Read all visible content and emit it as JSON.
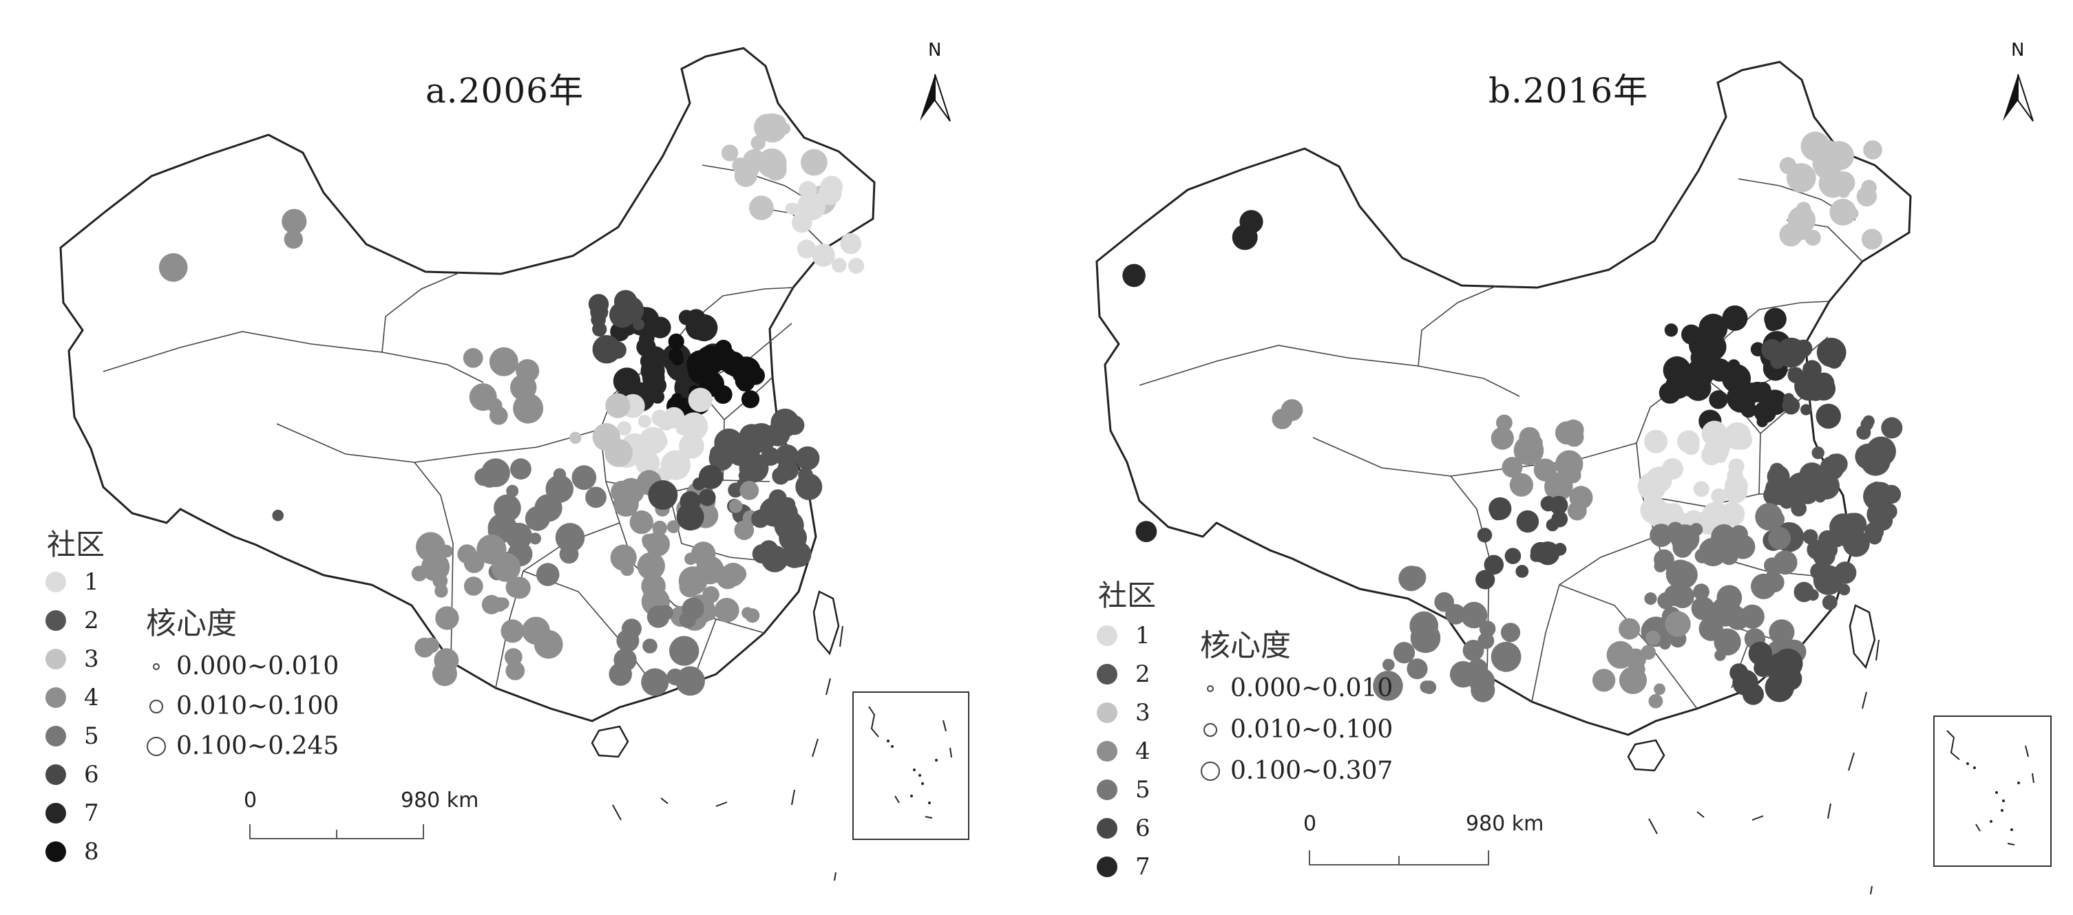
{
  "figure": {
    "community_colors": {
      "1": "#dcdcdc",
      "2": "#555555",
      "3": "#c4c4c4",
      "4": "#8e8e8e",
      "5": "#777777",
      "6": "#484848",
      "7": "#262626",
      "8": "#101010"
    },
    "panels": [
      {
        "title": "a.2006年",
        "north_label": "N",
        "legend": {
          "title": "社区",
          "items": [
            "1",
            "2",
            "3",
            "4",
            "5",
            "6",
            "7",
            "8"
          ]
        },
        "size_legend": {
          "title": "核心度",
          "ranges": [
            "0.000~0.010",
            "0.010~0.100",
            "0.100~0.245"
          ]
        },
        "scale": {
          "start": "0",
          "end": "980 km"
        }
      },
      {
        "title": "b.2016年",
        "north_label": "N",
        "legend": {
          "title": "社区",
          "items": [
            "1",
            "2",
            "3",
            "4",
            "5",
            "6",
            "7"
          ]
        },
        "size_legend": {
          "title": "核心度",
          "ranges": [
            "0.000~0.010",
            "0.010~0.100",
            "0.100~0.307"
          ]
        },
        "scale": {
          "start": "0",
          "end": "980 km"
        }
      }
    ]
  }
}
